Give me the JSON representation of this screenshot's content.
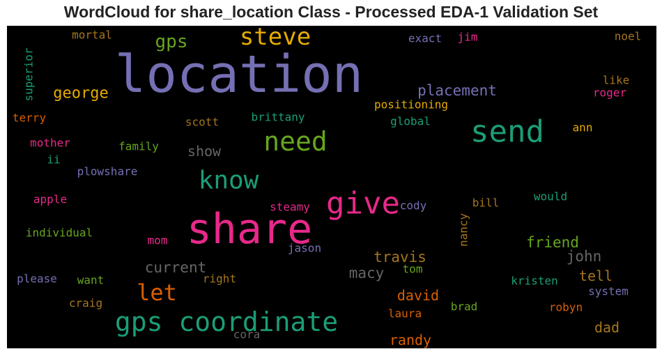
{
  "chart_data": {
    "type": "wordcloud",
    "title": "WordCloud for share_location Class - Processed EDA-1 Validation Set",
    "background": "#000000",
    "palette": "Dark2",
    "words": [
      {
        "text": "location",
        "weight": 1.0,
        "color": "#7570b3"
      },
      {
        "text": "share",
        "weight": 0.87,
        "color": "#e7298a"
      },
      {
        "text": "give",
        "weight": 0.65,
        "color": "#e7298a"
      },
      {
        "text": "send",
        "weight": 0.6,
        "color": "#1b9e77"
      },
      {
        "text": "gps coordinate",
        "weight": 0.55,
        "color": "#1b9e77"
      },
      {
        "text": "steve",
        "weight": 0.5,
        "color": "#e6ab02"
      },
      {
        "text": "know",
        "weight": 0.5,
        "color": "#1b9e77"
      },
      {
        "text": "need",
        "weight": 0.5,
        "color": "#66a61e"
      },
      {
        "text": "let",
        "weight": 0.45,
        "color": "#d95f02"
      },
      {
        "text": "gps",
        "weight": 0.35,
        "color": "#66a61e"
      },
      {
        "text": "george",
        "weight": 0.32,
        "color": "#e6ab02"
      },
      {
        "text": "placement",
        "weight": 0.3,
        "color": "#7570b3"
      },
      {
        "text": "travis",
        "weight": 0.32,
        "color": "#a6761d"
      },
      {
        "text": "david",
        "weight": 0.3,
        "color": "#d95f02"
      },
      {
        "text": "current",
        "weight": 0.3,
        "color": "#666666"
      },
      {
        "text": "macy",
        "weight": 0.3,
        "color": "#666666"
      },
      {
        "text": "john",
        "weight": 0.3,
        "color": "#666666"
      },
      {
        "text": "friend",
        "weight": 0.3,
        "color": "#66a61e"
      },
      {
        "text": "tell",
        "weight": 0.28,
        "color": "#a6761d"
      },
      {
        "text": "randy",
        "weight": 0.28,
        "color": "#d95f02"
      },
      {
        "text": "dad",
        "weight": 0.28,
        "color": "#a6761d"
      },
      {
        "text": "show",
        "weight": 0.27,
        "color": "#666666"
      },
      {
        "text": "positioning",
        "weight": 0.22,
        "color": "#e6ab02"
      },
      {
        "text": "mortal",
        "weight": 0.2,
        "color": "#a6761d"
      },
      {
        "text": "exact",
        "weight": 0.2,
        "color": "#7570b3"
      },
      {
        "text": "jim",
        "weight": 0.2,
        "color": "#e7298a"
      },
      {
        "text": "noel",
        "weight": 0.2,
        "color": "#a6761d"
      },
      {
        "text": "superior",
        "weight": 0.2,
        "color": "#1b9e77"
      },
      {
        "text": "like",
        "weight": 0.2,
        "color": "#a6761d"
      },
      {
        "text": "roger",
        "weight": 0.2,
        "color": "#e7298a"
      },
      {
        "text": "terry",
        "weight": 0.2,
        "color": "#d95f02"
      },
      {
        "text": "scott",
        "weight": 0.2,
        "color": "#a6761d"
      },
      {
        "text": "brittany",
        "weight": 0.2,
        "color": "#1b9e77"
      },
      {
        "text": "global",
        "weight": 0.2,
        "color": "#1b9e77"
      },
      {
        "text": "ann",
        "weight": 0.2,
        "color": "#e6ab02"
      },
      {
        "text": "mother",
        "weight": 0.2,
        "color": "#e7298a"
      },
      {
        "text": "family",
        "weight": 0.2,
        "color": "#66a61e"
      },
      {
        "text": "ii",
        "weight": 0.2,
        "color": "#1b9e77"
      },
      {
        "text": "plowshare",
        "weight": 0.2,
        "color": "#7570b3"
      },
      {
        "text": "apple",
        "weight": 0.2,
        "color": "#e7298a"
      },
      {
        "text": "would",
        "weight": 0.2,
        "color": "#1b9e77"
      },
      {
        "text": "bill",
        "weight": 0.2,
        "color": "#a6761d"
      },
      {
        "text": "cody",
        "weight": 0.2,
        "color": "#7570b3"
      },
      {
        "text": "steamy",
        "weight": 0.2,
        "color": "#e7298a"
      },
      {
        "text": "individual",
        "weight": 0.2,
        "color": "#66a61e"
      },
      {
        "text": "mom",
        "weight": 0.2,
        "color": "#e7298a"
      },
      {
        "text": "nancy",
        "weight": 0.2,
        "color": "#a6761d"
      },
      {
        "text": "jason",
        "weight": 0.2,
        "color": "#7570b3"
      },
      {
        "text": "tom",
        "weight": 0.2,
        "color": "#66a61e"
      },
      {
        "text": "please",
        "weight": 0.2,
        "color": "#7570b3"
      },
      {
        "text": "want",
        "weight": 0.2,
        "color": "#66a61e"
      },
      {
        "text": "right",
        "weight": 0.2,
        "color": "#a6761d"
      },
      {
        "text": "kristen",
        "weight": 0.2,
        "color": "#1b9e77"
      },
      {
        "text": "system",
        "weight": 0.2,
        "color": "#7570b3"
      },
      {
        "text": "craig",
        "weight": 0.2,
        "color": "#a6761d"
      },
      {
        "text": "brad",
        "weight": 0.2,
        "color": "#66a61e"
      },
      {
        "text": "robyn",
        "weight": 0.2,
        "color": "#d95f02"
      },
      {
        "text": "laura",
        "weight": 0.2,
        "color": "#d95f02"
      },
      {
        "text": "cora",
        "weight": 0.2,
        "color": "#666666"
      }
    ]
  }
}
